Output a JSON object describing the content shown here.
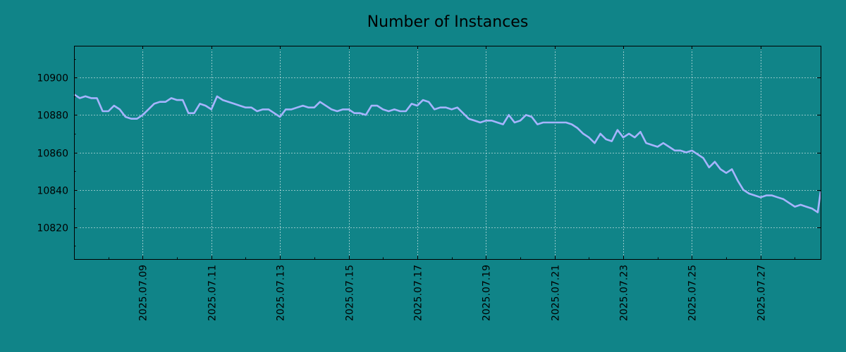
{
  "chart_data": {
    "type": "line",
    "title": "Number of Instances",
    "xlabel": "",
    "ylabel": "",
    "grid": true,
    "ylim": [
      10803,
      10917
    ],
    "xlim": [
      "2025-07-07T00:00",
      "2025-07-28T18:00"
    ],
    "x_ticks": [
      "2025.07.09",
      "2025.07.11",
      "2025.07.13",
      "2025.07.15",
      "2025.07.17",
      "2025.07.19",
      "2025.07.21",
      "2025.07.23",
      "2025.07.25",
      "2025.07.27"
    ],
    "y_ticks": [
      10820,
      10840,
      10860,
      10880,
      10900
    ],
    "line_color": "#a6b4ff",
    "background_color": "#108488",
    "series": [
      {
        "x": [
          "2025-07-07T00:00",
          "2025-07-07T04:00",
          "2025-07-07T08:00",
          "2025-07-07T12:00",
          "2025-07-07T16:00",
          "2025-07-07T20:00",
          "2025-07-08T00:00",
          "2025-07-08T04:00",
          "2025-07-08T08:00",
          "2025-07-08T12:00",
          "2025-07-08T16:00",
          "2025-07-08T20:00",
          "2025-07-09T00:00",
          "2025-07-09T04:00",
          "2025-07-09T08:00",
          "2025-07-09T12:00",
          "2025-07-09T16:00",
          "2025-07-09T20:00",
          "2025-07-10T00:00",
          "2025-07-10T04:00",
          "2025-07-10T08:00",
          "2025-07-10T12:00",
          "2025-07-10T16:00",
          "2025-07-10T20:00",
          "2025-07-11T00:00",
          "2025-07-11T04:00",
          "2025-07-11T08:00",
          "2025-07-11T12:00",
          "2025-07-11T16:00",
          "2025-07-11T20:00",
          "2025-07-12T00:00",
          "2025-07-12T04:00",
          "2025-07-12T08:00",
          "2025-07-12T12:00",
          "2025-07-12T16:00",
          "2025-07-12T20:00",
          "2025-07-13T00:00",
          "2025-07-13T04:00",
          "2025-07-13T08:00",
          "2025-07-13T12:00",
          "2025-07-13T16:00",
          "2025-07-13T20:00",
          "2025-07-14T00:00",
          "2025-07-14T04:00",
          "2025-07-14T08:00",
          "2025-07-14T12:00",
          "2025-07-14T16:00",
          "2025-07-14T20:00",
          "2025-07-15T00:00",
          "2025-07-15T04:00",
          "2025-07-15T08:00",
          "2025-07-15T12:00",
          "2025-07-15T16:00",
          "2025-07-15T20:00",
          "2025-07-16T00:00",
          "2025-07-16T04:00",
          "2025-07-16T08:00",
          "2025-07-16T12:00",
          "2025-07-16T16:00",
          "2025-07-16T20:00",
          "2025-07-17T00:00",
          "2025-07-17T04:00",
          "2025-07-17T08:00",
          "2025-07-17T12:00",
          "2025-07-17T16:00",
          "2025-07-17T20:00",
          "2025-07-18T00:00",
          "2025-07-18T04:00",
          "2025-07-18T08:00",
          "2025-07-18T12:00",
          "2025-07-18T16:00",
          "2025-07-18T20:00",
          "2025-07-19T00:00",
          "2025-07-19T04:00",
          "2025-07-19T08:00",
          "2025-07-19T12:00",
          "2025-07-19T16:00",
          "2025-07-19T20:00",
          "2025-07-20T00:00",
          "2025-07-20T04:00",
          "2025-07-20T08:00",
          "2025-07-20T12:00",
          "2025-07-20T16:00",
          "2025-07-20T20:00",
          "2025-07-21T00:00",
          "2025-07-21T04:00",
          "2025-07-21T08:00",
          "2025-07-21T12:00",
          "2025-07-21T16:00",
          "2025-07-21T20:00",
          "2025-07-22T00:00",
          "2025-07-22T04:00",
          "2025-07-22T08:00",
          "2025-07-22T12:00",
          "2025-07-22T16:00",
          "2025-07-22T20:00",
          "2025-07-23T00:00",
          "2025-07-23T04:00",
          "2025-07-23T08:00",
          "2025-07-23T12:00",
          "2025-07-23T16:00",
          "2025-07-23T20:00",
          "2025-07-24T00:00",
          "2025-07-24T04:00",
          "2025-07-24T08:00",
          "2025-07-24T12:00",
          "2025-07-24T16:00",
          "2025-07-24T20:00",
          "2025-07-25T00:00",
          "2025-07-25T04:00",
          "2025-07-25T08:00",
          "2025-07-25T12:00",
          "2025-07-25T16:00",
          "2025-07-25T20:00",
          "2025-07-26T00:00",
          "2025-07-26T04:00",
          "2025-07-26T08:00",
          "2025-07-26T12:00",
          "2025-07-26T16:00",
          "2025-07-26T20:00",
          "2025-07-27T00:00",
          "2025-07-27T04:00",
          "2025-07-27T08:00",
          "2025-07-27T12:00",
          "2025-07-27T16:00",
          "2025-07-27T20:00",
          "2025-07-28T00:00",
          "2025-07-28T04:00",
          "2025-07-28T08:00",
          "2025-07-28T12:00",
          "2025-07-28T16:00",
          "2025-07-28T18:00"
        ],
        "values": [
          10891,
          10889,
          10890,
          10889,
          10889,
          10882,
          10882,
          10885,
          10883,
          10879,
          10878,
          10878,
          10880,
          10883,
          10886,
          10887,
          10887,
          10889,
          10888,
          10888,
          10881,
          10881,
          10886,
          10885,
          10883,
          10890,
          10888,
          10887,
          10886,
          10885,
          10884,
          10884,
          10882,
          10883,
          10883,
          10881,
          10879,
          10883,
          10883,
          10884,
          10885,
          10884,
          10884,
          10887,
          10885,
          10883,
          10882,
          10883,
          10883,
          10881,
          10881,
          10880,
          10885,
          10885,
          10883,
          10882,
          10883,
          10882,
          10882,
          10886,
          10885,
          10888,
          10887,
          10883,
          10884,
          10884,
          10883,
          10884,
          10881,
          10878,
          10877,
          10876,
          10877,
          10877,
          10876,
          10875,
          10880,
          10876,
          10877,
          10880,
          10879,
          10875,
          10876,
          10876,
          10876,
          10876,
          10876,
          10875,
          10873,
          10870,
          10868,
          10865,
          10870,
          10867,
          10866,
          10872,
          10868,
          10870,
          10868,
          10871,
          10865,
          10864,
          10863,
          10865,
          10863,
          10861,
          10861,
          10860,
          10861,
          10859,
          10857,
          10852,
          10855,
          10851,
          10849,
          10851,
          10845,
          10840,
          10838,
          10837,
          10836,
          10837,
          10837,
          10836,
          10835,
          10833,
          10831,
          10832,
          10831,
          10830,
          10828,
          10839
        ]
      }
    ]
  }
}
